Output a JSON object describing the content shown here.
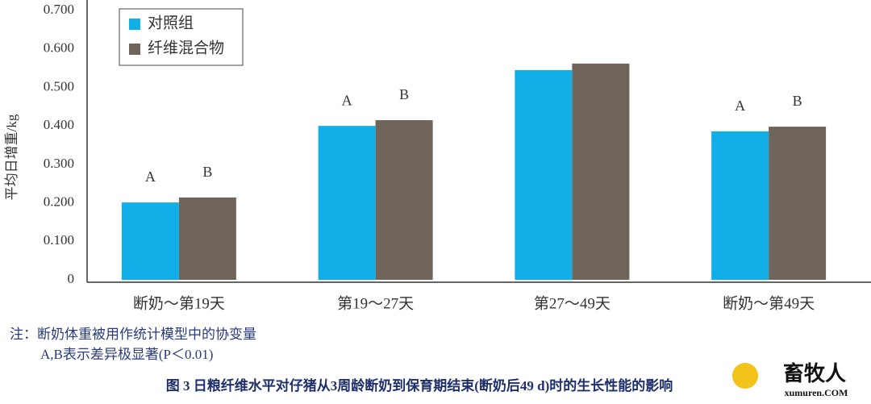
{
  "chart_data": {
    "type": "bar",
    "y_label": "平均日增重/kg",
    "categories": [
      "断奶～第19天",
      "第19～27天",
      "第27～49天",
      "断奶～第49天"
    ],
    "series": [
      {
        "name": "对照组",
        "color": "#12aee8",
        "values": [
          0.201,
          0.4,
          0.545,
          0.386
        ],
        "letters": [
          "A",
          "A",
          null,
          "A"
        ]
      },
      {
        "name": "纤维混合物",
        "color": "#6f645a",
        "values": [
          0.214,
          0.415,
          0.562,
          0.398
        ],
        "letters": [
          "B",
          "B",
          null,
          "B"
        ]
      }
    ],
    "ylim": [
      0,
      0.7
    ],
    "yticks": [
      0,
      {
        "value": 0.1,
        "label": "0.100"
      },
      {
        "value": 0.2,
        "label": "0.200"
      },
      {
        "value": 0.3,
        "label": "0.300"
      },
      {
        "value": 0.4,
        "label": "0.400"
      },
      {
        "value": 0.5,
        "label": "0.500"
      },
      {
        "value": 0.6,
        "label": "0.600"
      },
      {
        "value": 0.7,
        "label": "0.700"
      }
    ],
    "notes": [
      "注：断奶体重被用作统计模型中的协变量",
      "A,B表示差异极显著(P＜0.01)"
    ],
    "caption": "图 3  日粮纤维水平对仔猪从3周龄断奶到保育期结束(断奶后49 d)时的生长性能的影响",
    "logo": {
      "name": "畜牧人",
      "site": "xumuren.COM"
    }
  }
}
